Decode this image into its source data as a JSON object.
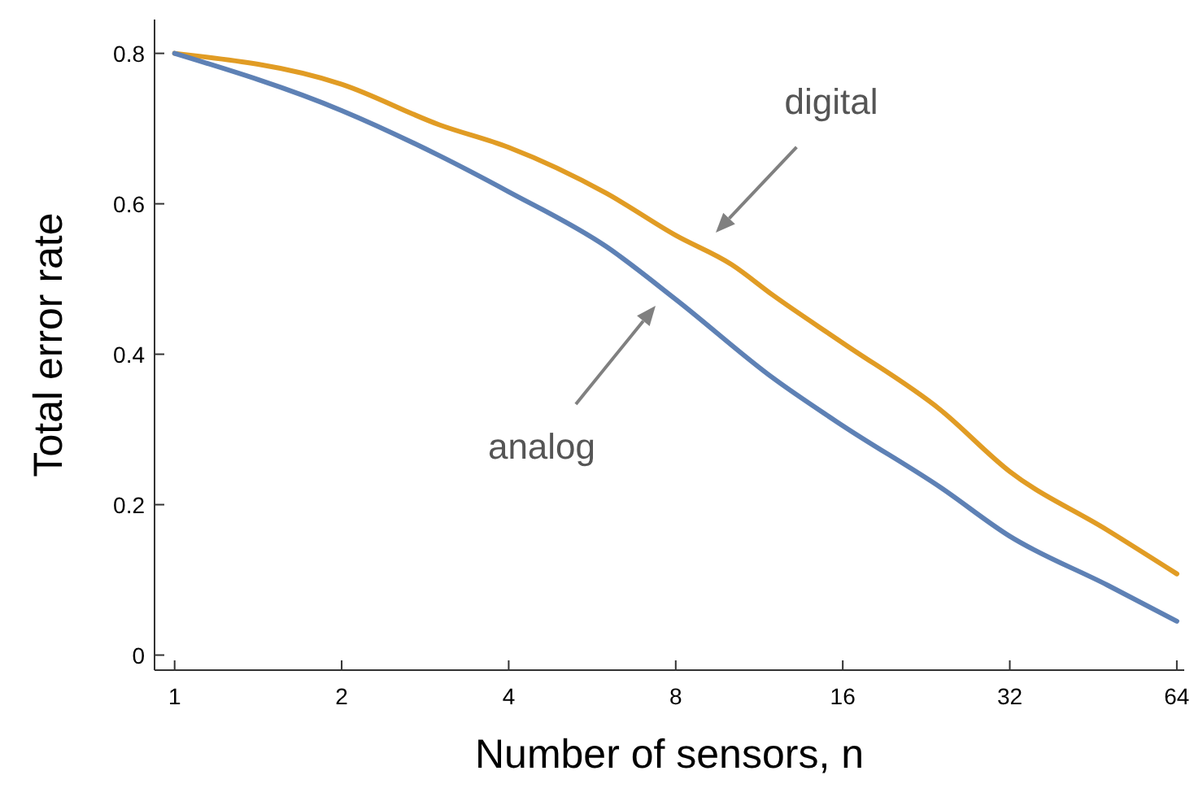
{
  "chart_data": {
    "type": "line",
    "xlabel": "Number of sensors, n",
    "ylabel": "Total error rate",
    "log": "x",
    "xlim": [
      0.92,
      66
    ],
    "ylim": [
      -0.02,
      0.845
    ],
    "xticks": [
      1,
      2,
      4,
      8,
      16,
      32,
      64
    ],
    "yticks": [
      0,
      0.2,
      0.4,
      0.6,
      0.8
    ],
    "grid": false,
    "series": [
      {
        "color": "#e19c24",
        "x": [
          1,
          2,
          3,
          4,
          6,
          8,
          10.1,
          12,
          16,
          24,
          32,
          48,
          64
        ],
        "values": [
          0.8,
          0.759,
          0.705,
          0.675,
          0.614,
          0.558,
          0.519,
          0.478,
          0.415,
          0.326,
          0.244,
          0.166,
          0.108
        ]
      },
      {
        "color": "#5e81b5",
        "x": [
          1,
          2,
          3,
          4,
          6,
          8,
          12,
          16,
          24,
          32,
          48,
          64
        ],
        "values": [
          0.8,
          0.724,
          0.664,
          0.616,
          0.543,
          0.473,
          0.368,
          0.305,
          0.223,
          0.158,
          0.093,
          0.045
        ]
      }
    ],
    "annotations": [
      "digital",
      "analog"
    ]
  }
}
